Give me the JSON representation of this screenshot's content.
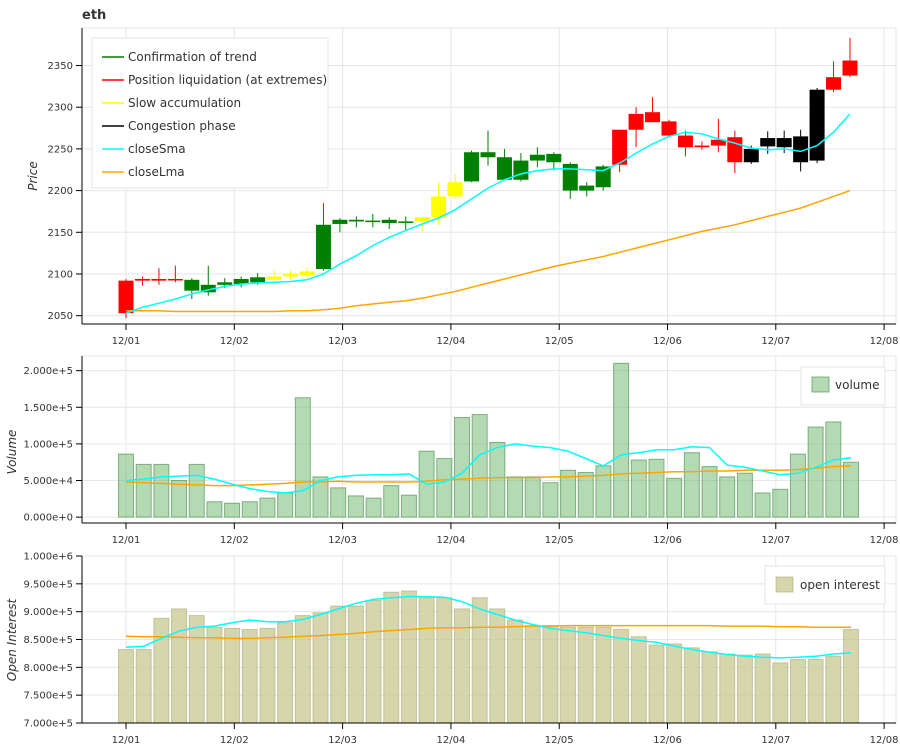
{
  "chart_data": [
    {
      "type": "candlestick",
      "title": "eth",
      "ylabel": "Price",
      "ylim": [
        2040,
        2395
      ],
      "yticks": [
        2050,
        2100,
        2150,
        2200,
        2250,
        2300,
        2350
      ],
      "xticks": [
        "12/01",
        "12/02",
        "12/03",
        "12/04",
        "12/05",
        "12/06",
        "12/07",
        "12/08"
      ],
      "grid": true,
      "legend_position": "top-left",
      "legend": [
        {
          "name": "Confirmation of trend",
          "color": "#008000"
        },
        {
          "name": "Position liquidation (at extremes)",
          "color": "#ff0000"
        },
        {
          "name": "Slow accumulation",
          "color": "#ffff00"
        },
        {
          "name": "Congestion phase",
          "color": "#000000"
        },
        {
          "name": "closeSma",
          "color": "#00ffff"
        },
        {
          "name": "closeLma",
          "color": "#ffa500"
        }
      ],
      "candles": [
        {
          "o": 2092,
          "h": 2094,
          "l": 2047,
          "c": 2053,
          "phase": "red"
        },
        {
          "o": 2092,
          "h": 2097,
          "l": 2086,
          "c": 2094,
          "phase": "red"
        },
        {
          "o": 2094,
          "h": 2107,
          "l": 2087,
          "c": 2092,
          "phase": "red"
        },
        {
          "o": 2093,
          "h": 2110,
          "l": 2090,
          "c": 2094,
          "phase": "red"
        },
        {
          "o": 2093,
          "h": 2095,
          "l": 2070,
          "c": 2080,
          "phase": "green"
        },
        {
          "o": 2087,
          "h": 2110,
          "l": 2074,
          "c": 2078,
          "phase": "green"
        },
        {
          "o": 2090,
          "h": 2095,
          "l": 2083,
          "c": 2087,
          "phase": "green"
        },
        {
          "o": 2094,
          "h": 2097,
          "l": 2084,
          "c": 2088,
          "phase": "green"
        },
        {
          "o": 2096,
          "h": 2101,
          "l": 2087,
          "c": 2090,
          "phase": "green"
        },
        {
          "o": 2093,
          "h": 2104,
          "l": 2090,
          "c": 2097,
          "phase": "yellow"
        },
        {
          "o": 2097,
          "h": 2104,
          "l": 2093,
          "c": 2100,
          "phase": "yellow"
        },
        {
          "o": 2103,
          "h": 2108,
          "l": 2095,
          "c": 2098,
          "phase": "yellow"
        },
        {
          "o": 2106,
          "h": 2185,
          "l": 2104,
          "c": 2159,
          "phase": "green"
        },
        {
          "o": 2160,
          "h": 2167,
          "l": 2150,
          "c": 2165,
          "phase": "green"
        },
        {
          "o": 2163,
          "h": 2169,
          "l": 2156,
          "c": 2165,
          "phase": "green"
        },
        {
          "o": 2163,
          "h": 2172,
          "l": 2156,
          "c": 2164,
          "phase": "green"
        },
        {
          "o": 2161,
          "h": 2168,
          "l": 2154,
          "c": 2165,
          "phase": "green"
        },
        {
          "o": 2163,
          "h": 2169,
          "l": 2152,
          "c": 2162,
          "phase": "green"
        },
        {
          "o": 2163,
          "h": 2168,
          "l": 2150,
          "c": 2168,
          "phase": "yellow"
        },
        {
          "o": 2168,
          "h": 2210,
          "l": 2158,
          "c": 2193,
          "phase": "yellow"
        },
        {
          "o": 2193,
          "h": 2220,
          "l": 2190,
          "c": 2210,
          "phase": "yellow"
        },
        {
          "o": 2211,
          "h": 2248,
          "l": 2210,
          "c": 2246,
          "phase": "green"
        },
        {
          "o": 2246,
          "h": 2272,
          "l": 2230,
          "c": 2240,
          "phase": "green"
        },
        {
          "o": 2240,
          "h": 2250,
          "l": 2213,
          "c": 2213,
          "phase": "green"
        },
        {
          "o": 2213,
          "h": 2245,
          "l": 2211,
          "c": 2236,
          "phase": "green"
        },
        {
          "o": 2236,
          "h": 2252,
          "l": 2228,
          "c": 2243,
          "phase": "green"
        },
        {
          "o": 2244,
          "h": 2246,
          "l": 2224,
          "c": 2234,
          "phase": "green"
        },
        {
          "o": 2232,
          "h": 2234,
          "l": 2190,
          "c": 2200,
          "phase": "green"
        },
        {
          "o": 2200,
          "h": 2210,
          "l": 2193,
          "c": 2206,
          "phase": "green"
        },
        {
          "o": 2204,
          "h": 2231,
          "l": 2200,
          "c": 2229,
          "phase": "green"
        },
        {
          "o": 2231,
          "h": 2273,
          "l": 2222,
          "c": 2273,
          "phase": "red"
        },
        {
          "o": 2273,
          "h": 2300,
          "l": 2252,
          "c": 2292,
          "phase": "red"
        },
        {
          "o": 2294,
          "h": 2312,
          "l": 2282,
          "c": 2282,
          "phase": "red"
        },
        {
          "o": 2283,
          "h": 2285,
          "l": 2265,
          "c": 2266,
          "phase": "red"
        },
        {
          "o": 2266,
          "h": 2272,
          "l": 2241,
          "c": 2252,
          "phase": "red"
        },
        {
          "o": 2254,
          "h": 2259,
          "l": 2249,
          "c": 2252,
          "phase": "red"
        },
        {
          "o": 2261,
          "h": 2286,
          "l": 2246,
          "c": 2254,
          "phase": "red"
        },
        {
          "o": 2264,
          "h": 2272,
          "l": 2221,
          "c": 2234,
          "phase": "red"
        },
        {
          "o": 2250,
          "h": 2254,
          "l": 2232,
          "c": 2234,
          "phase": "black"
        },
        {
          "o": 2253,
          "h": 2271,
          "l": 2244,
          "c": 2263,
          "phase": "black"
        },
        {
          "o": 2263,
          "h": 2272,
          "l": 2245,
          "c": 2252,
          "phase": "black"
        },
        {
          "o": 2265,
          "h": 2273,
          "l": 2223,
          "c": 2234,
          "phase": "black"
        },
        {
          "o": 2236,
          "h": 2323,
          "l": 2233,
          "c": 2321,
          "phase": "black"
        },
        {
          "o": 2321,
          "h": 2355,
          "l": 2318,
          "c": 2336,
          "phase": "red"
        },
        {
          "o": 2338,
          "h": 2383,
          "l": 2336,
          "c": 2356,
          "phase": "red"
        }
      ],
      "closeSma": [
        2053,
        2060,
        2065,
        2070,
        2076,
        2081,
        2085,
        2088,
        2089,
        2090,
        2091,
        2093,
        2100,
        2112,
        2122,
        2134,
        2144,
        2152,
        2160,
        2167,
        2177,
        2190,
        2203,
        2213,
        2220,
        2224,
        2226,
        2226,
        2225,
        2224,
        2233,
        2245,
        2256,
        2265,
        2270,
        2268,
        2262,
        2257,
        2251,
        2249,
        2250,
        2247,
        2254,
        2270,
        2292
      ],
      "closeLma": [
        2056,
        2056,
        2056,
        2055,
        2055,
        2055,
        2055,
        2055,
        2055,
        2055,
        2056,
        2056,
        2057,
        2059,
        2062,
        2064,
        2066,
        2068,
        2071,
        2075,
        2079,
        2084,
        2089,
        2094,
        2099,
        2104,
        2109,
        2113,
        2117,
        2121,
        2126,
        2131,
        2136,
        2141,
        2146,
        2151,
        2155,
        2159,
        2164,
        2169,
        2174,
        2179,
        2186,
        2193,
        2200
      ]
    },
    {
      "type": "bar",
      "ylabel": "Volume",
      "ylim": [
        -8000,
        220000
      ],
      "yticks": [
        0,
        50000,
        100000,
        150000,
        200000
      ],
      "ytick_labels": [
        "0.000e+0",
        "5.000e+4",
        "1.000e+5",
        "1.500e+5",
        "2.000e+5"
      ],
      "xticks": [
        "12/01",
        "12/02",
        "12/03",
        "12/04",
        "12/05",
        "12/06",
        "12/07",
        "12/08"
      ],
      "grid": true,
      "legend_position": "top-right",
      "series": [
        {
          "name": "volume",
          "color": "#77bb77"
        }
      ],
      "values": [
        86000,
        72000,
        72000,
        50000,
        72000,
        21000,
        19000,
        21000,
        26000,
        33000,
        163000,
        55000,
        40000,
        29000,
        26000,
        43000,
        30000,
        90000,
        80000,
        136000,
        140000,
        102000,
        55000,
        55000,
        47000,
        64000,
        61000,
        70000,
        210000,
        78000,
        79000,
        53000,
        88000,
        69000,
        55000,
        60000,
        33000,
        38000,
        86000,
        123000,
        130000,
        75000
      ],
      "sma": [
        50000,
        52000,
        55000,
        56000,
        57000,
        52000,
        45000,
        39000,
        35000,
        33000,
        36000,
        50000,
        55000,
        57000,
        58000,
        58000,
        59000,
        45000,
        48000,
        60000,
        85000,
        95000,
        100000,
        97000,
        95000,
        90000,
        80000,
        70000,
        85000,
        88000,
        92000,
        92000,
        96000,
        95000,
        71000,
        68000,
        63000,
        58000,
        60000,
        68000,
        78000,
        81000
      ],
      "lma": [
        48000,
        47000,
        46000,
        45000,
        44000,
        43000,
        43000,
        44000,
        45000,
        46000,
        48000,
        48000,
        49000,
        48000,
        48000,
        48000,
        48000,
        49000,
        51000,
        52000,
        53000,
        54000,
        54000,
        54000,
        55000,
        55000,
        56000,
        57000,
        59000,
        60000,
        61000,
        62000,
        62000,
        63000,
        63000,
        64000,
        64000,
        64000,
        65000,
        67000,
        69000,
        70000
      ]
    },
    {
      "type": "bar",
      "ylabel": "Open Interest",
      "ylim": [
        700000,
        1000000
      ],
      "yticks": [
        700000,
        750000,
        800000,
        850000,
        900000,
        950000,
        1000000
      ],
      "ytick_labels": [
        "7.000e+5",
        "7.500e+5",
        "8.000e+5",
        "8.500e+5",
        "9.000e+5",
        "9.500e+5",
        "1.000e+6"
      ],
      "xticks": [
        "12/01",
        "12/02",
        "12/03",
        "12/04",
        "12/05",
        "12/06",
        "12/07",
        "12/08"
      ],
      "grid": true,
      "legend_position": "top-right",
      "series": [
        {
          "name": "open interest",
          "color": "#cccc99"
        }
      ],
      "values": [
        832000,
        832000,
        888000,
        905000,
        893000,
        872000,
        870000,
        868000,
        870000,
        880000,
        893000,
        898000,
        910000,
        910000,
        920000,
        935000,
        937000,
        925000,
        925000,
        905000,
        925000,
        905000,
        885000,
        875000,
        875000,
        872000,
        872000,
        872000,
        868000,
        855000,
        840000,
        842000,
        835000,
        828000,
        824000,
        822000,
        824000,
        808000,
        814000,
        814000,
        820000,
        868000
      ],
      "sma": [
        836000,
        838000,
        852000,
        865000,
        872000,
        874000,
        880000,
        885000,
        882000,
        882000,
        886000,
        895000,
        905000,
        915000,
        922000,
        925000,
        927000,
        927000,
        926000,
        918000,
        905000,
        895000,
        885000,
        877000,
        870000,
        866000,
        862000,
        857000,
        852000,
        848000,
        845000,
        838000,
        832000,
        827000,
        823000,
        820000,
        818000,
        817000,
        818000,
        820000,
        824000,
        826000
      ],
      "lma": [
        856000,
        855000,
        855000,
        854000,
        853000,
        853000,
        852000,
        852000,
        853000,
        854000,
        856000,
        857000,
        859000,
        861000,
        864000,
        866000,
        868000,
        870000,
        871000,
        871000,
        872000,
        872000,
        873000,
        874000,
        874000,
        875000,
        875000,
        875000,
        875000,
        875000,
        875000,
        875000,
        875000,
        875000,
        874000,
        874000,
        874000,
        873000,
        873000,
        872000,
        872000,
        872000
      ]
    }
  ]
}
